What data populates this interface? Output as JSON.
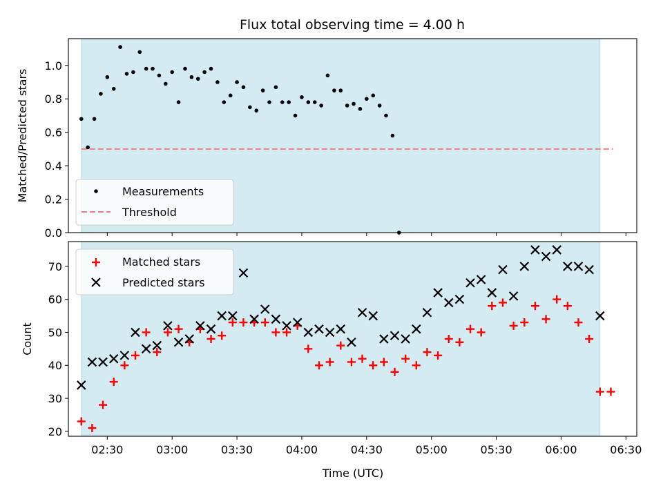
{
  "chart_data": [
    {
      "type": "scatter",
      "title": "Flux total observing time = 4.00 h",
      "ylabel": "Matched/Predicted stars",
      "xlabel": "",
      "xlim": [
        "02:12",
        "06:35"
      ],
      "ylim": [
        0,
        1.16
      ],
      "yticks": [
        "0.0",
        "0.2",
        "0.4",
        "0.6",
        "0.8",
        "1.0"
      ],
      "observing_window": [
        "02:18",
        "06:18"
      ],
      "shade_color": "#d4ebf1",
      "legend_position": "lower-left",
      "series": [
        {
          "name": "Measurements",
          "marker": "dot",
          "color": "#000000",
          "points": [
            [
              "02:18",
              0.68
            ],
            [
              "02:21",
              0.51
            ],
            [
              "02:24",
              0.68
            ],
            [
              "02:27",
              0.83
            ],
            [
              "02:30",
              0.93
            ],
            [
              "02:33",
              0.86
            ],
            [
              "02:36",
              1.11
            ],
            [
              "02:39",
              0.95
            ],
            [
              "02:42",
              0.96
            ],
            [
              "02:45",
              1.08
            ],
            [
              "02:48",
              0.98
            ],
            [
              "02:51",
              0.98
            ],
            [
              "02:54",
              0.94
            ],
            [
              "02:57",
              0.89
            ],
            [
              "03:00",
              0.96
            ],
            [
              "03:03",
              0.78
            ],
            [
              "03:06",
              0.98
            ],
            [
              "03:09",
              0.93
            ],
            [
              "03:12",
              0.92
            ],
            [
              "03:15",
              0.96
            ],
            [
              "03:18",
              0.98
            ],
            [
              "03:21",
              0.9
            ],
            [
              "03:24",
              0.78
            ],
            [
              "03:27",
              0.82
            ],
            [
              "03:30",
              0.9
            ],
            [
              "03:33",
              0.87
            ],
            [
              "03:36",
              0.75
            ],
            [
              "03:39",
              0.73
            ],
            [
              "03:42",
              0.85
            ],
            [
              "03:45",
              0.78
            ],
            [
              "03:48",
              0.87
            ],
            [
              "03:51",
              0.78
            ],
            [
              "03:54",
              0.78
            ],
            [
              "03:57",
              0.7
            ],
            [
              "04:00",
              0.81
            ],
            [
              "04:03",
              0.78
            ],
            [
              "04:06",
              0.78
            ],
            [
              "04:09",
              0.76
            ],
            [
              "04:12",
              0.94
            ],
            [
              "04:15",
              0.85
            ],
            [
              "04:18",
              0.85
            ],
            [
              "04:21",
              0.76
            ],
            [
              "04:24",
              0.77
            ],
            [
              "04:27",
              0.74
            ],
            [
              "04:30",
              0.8
            ],
            [
              "04:33",
              0.82
            ],
            [
              "04:36",
              0.76
            ],
            [
              "04:39",
              0.7
            ],
            [
              "04:42",
              0.58
            ],
            [
              "04:45",
              0.0
            ]
          ]
        },
        {
          "name": "Threshold",
          "marker": "dashed-line",
          "color": "#f08080",
          "value": 0.5,
          "x_range": [
            "02:18",
            "06:24"
          ]
        }
      ]
    },
    {
      "type": "scatter",
      "title": "",
      "ylabel": "Count",
      "xlabel": "Time (UTC)",
      "xlim": [
        "02:12",
        "06:35"
      ],
      "ylim": [
        18.5,
        77.5
      ],
      "yticks": [
        "20",
        "30",
        "40",
        "50",
        "60",
        "70"
      ],
      "xticks": [
        "02:30",
        "03:00",
        "03:30",
        "04:00",
        "04:30",
        "05:00",
        "05:30",
        "06:00",
        "06:30"
      ],
      "observing_window": [
        "02:18",
        "06:18"
      ],
      "shade_color": "#d4ebf1",
      "legend_position": "top-left",
      "series": [
        {
          "name": "Matched stars",
          "marker": "plus",
          "color": "#ff0000",
          "points": [
            [
              "02:18",
              23
            ],
            [
              "02:23",
              21
            ],
            [
              "02:28",
              28
            ],
            [
              "02:33",
              35
            ],
            [
              "02:38",
              40
            ],
            [
              "02:43",
              43
            ],
            [
              "02:48",
              50
            ],
            [
              "02:53",
              44
            ],
            [
              "02:58",
              50
            ],
            [
              "03:03",
              51
            ],
            [
              "03:08",
              47
            ],
            [
              "03:13",
              51
            ],
            [
              "03:18",
              48
            ],
            [
              "03:23",
              49
            ],
            [
              "03:28",
              53
            ],
            [
              "03:33",
              53
            ],
            [
              "03:38",
              53
            ],
            [
              "03:43",
              53
            ],
            [
              "03:48",
              50
            ],
            [
              "03:53",
              50
            ],
            [
              "03:58",
              52
            ],
            [
              "04:03",
              45
            ],
            [
              "04:08",
              40
            ],
            [
              "04:13",
              41
            ],
            [
              "04:18",
              46
            ],
            [
              "04:23",
              41
            ],
            [
              "04:28",
              42
            ],
            [
              "04:33",
              40
            ],
            [
              "04:38",
              41
            ],
            [
              "04:43",
              38
            ],
            [
              "04:48",
              42
            ],
            [
              "04:53",
              40
            ],
            [
              "04:58",
              44
            ],
            [
              "05:03",
              43
            ],
            [
              "05:08",
              48
            ],
            [
              "05:13",
              47
            ],
            [
              "05:18",
              51
            ],
            [
              "05:23",
              50
            ],
            [
              "05:28",
              58
            ],
            [
              "05:33",
              59
            ],
            [
              "05:38",
              52
            ],
            [
              "05:43",
              53
            ],
            [
              "05:48",
              58
            ],
            [
              "05:53",
              54
            ],
            [
              "05:58",
              60
            ],
            [
              "06:03",
              58
            ],
            [
              "06:08",
              53
            ],
            [
              "06:13",
              48
            ],
            [
              "06:18",
              32
            ],
            [
              "06:23",
              32
            ]
          ]
        },
        {
          "name": "Predicted stars",
          "marker": "x",
          "color": "#000000",
          "points": [
            [
              "02:18",
              34
            ],
            [
              "02:23",
              41
            ],
            [
              "02:28",
              41
            ],
            [
              "02:33",
              42
            ],
            [
              "02:38",
              43
            ],
            [
              "02:43",
              50
            ],
            [
              "02:48",
              45
            ],
            [
              "02:53",
              46
            ],
            [
              "02:58",
              52
            ],
            [
              "03:03",
              47
            ],
            [
              "03:08",
              48
            ],
            [
              "03:13",
              52
            ],
            [
              "03:18",
              51
            ],
            [
              "03:23",
              55
            ],
            [
              "03:28",
              55
            ],
            [
              "03:33",
              68
            ],
            [
              "03:38",
              54
            ],
            [
              "03:43",
              57
            ],
            [
              "03:48",
              54
            ],
            [
              "03:53",
              52
            ],
            [
              "03:58",
              53
            ],
            [
              "04:03",
              50
            ],
            [
              "04:08",
              51
            ],
            [
              "04:13",
              50
            ],
            [
              "04:18",
              51
            ],
            [
              "04:23",
              47
            ],
            [
              "04:28",
              56
            ],
            [
              "04:33",
              55
            ],
            [
              "04:38",
              48
            ],
            [
              "04:43",
              49
            ],
            [
              "04:48",
              48
            ],
            [
              "04:53",
              51
            ],
            [
              "04:58",
              56
            ],
            [
              "05:03",
              62
            ],
            [
              "05:08",
              59
            ],
            [
              "05:13",
              60
            ],
            [
              "05:18",
              65
            ],
            [
              "05:23",
              66
            ],
            [
              "05:28",
              62
            ],
            [
              "05:33",
              69
            ],
            [
              "05:38",
              61
            ],
            [
              "05:43",
              70
            ],
            [
              "05:48",
              75
            ],
            [
              "05:53",
              73
            ],
            [
              "05:58",
              75
            ],
            [
              "06:03",
              70
            ],
            [
              "06:08",
              70
            ],
            [
              "06:13",
              69
            ],
            [
              "06:18",
              55
            ]
          ]
        }
      ]
    }
  ]
}
